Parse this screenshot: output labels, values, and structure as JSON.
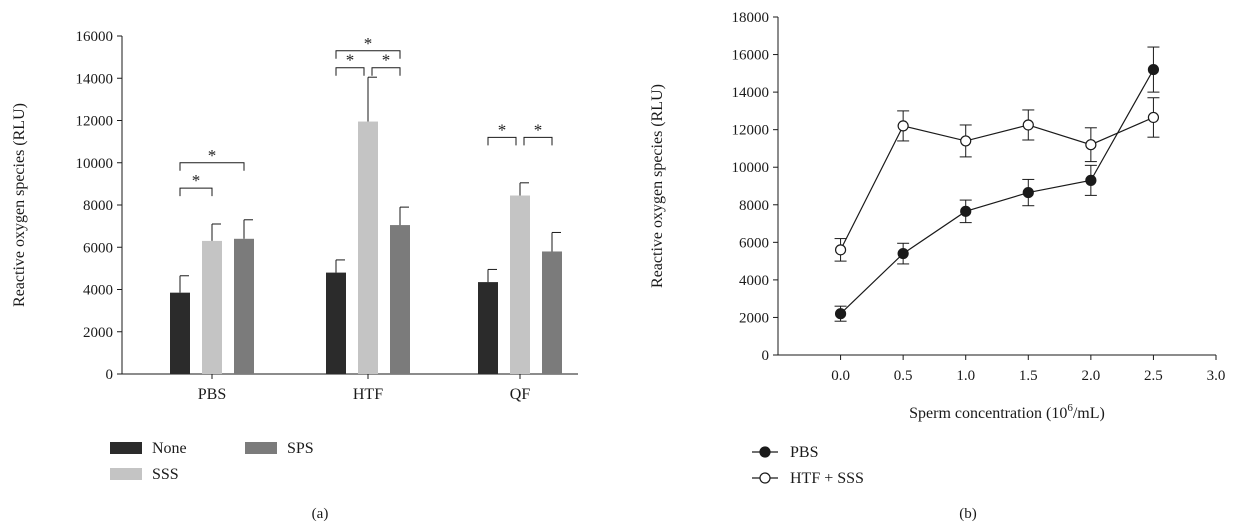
{
  "chart_data": [
    {
      "panel_label": "(a)",
      "type": "bar",
      "xlabel": "",
      "ylabel": "Reactive oxygen species (RLU)",
      "ylim": [
        0,
        16000
      ],
      "yticks": [
        0,
        2000,
        4000,
        6000,
        8000,
        10000,
        12000,
        14000,
        16000
      ],
      "categories": [
        "PBS",
        "HTF",
        "QF"
      ],
      "series": [
        {
          "name": "None",
          "color": "#2b2b2b",
          "values": [
            3850,
            4800,
            4350
          ],
          "errors": [
            800,
            600,
            600
          ]
        },
        {
          "name": "SSS",
          "color": "#c4c4c4",
          "values": [
            6300,
            11950,
            8450
          ],
          "errors": [
            800,
            2100,
            600
          ]
        },
        {
          "name": "SPS",
          "color": "#7b7b7b",
          "values": [
            6400,
            7050,
            5800
          ],
          "errors": [
            900,
            850,
            900
          ]
        }
      ],
      "significance": [
        {
          "category": "PBS",
          "from": "None",
          "to": "SSS",
          "y": 8800,
          "label": "*"
        },
        {
          "category": "PBS",
          "from": "None",
          "to": "SPS",
          "y": 10000,
          "label": "*"
        },
        {
          "category": "HTF",
          "from": "None",
          "to": "SSS",
          "y": 14500,
          "label": "*"
        },
        {
          "category": "HTF",
          "from": "SSS",
          "to": "SPS",
          "y": 14500,
          "label": "*"
        },
        {
          "category": "HTF",
          "from": "None",
          "to": "SPS",
          "y": 15300,
          "label": "*"
        },
        {
          "category": "QF",
          "from": "None",
          "to": "SSS",
          "y": 11200,
          "label": "*"
        },
        {
          "category": "QF",
          "from": "SSS",
          "to": "SPS",
          "y": 11200,
          "label": "*"
        }
      ],
      "legend_position": "bottom-left"
    },
    {
      "panel_label": "(b)",
      "type": "line",
      "xlabel_prefix": "Sperm concentration (10",
      "xlabel_sup": "6",
      "xlabel_suffix": "/mL)",
      "ylabel": "Reactive oxygen species (RLU)",
      "xlim": [
        -0.5,
        3.0
      ],
      "xticks": [
        "0.0",
        "0.5",
        "1.0",
        "1.5",
        "2.0",
        "2.5",
        "3.0"
      ],
      "ylim": [
        0,
        18000
      ],
      "yticks": [
        0,
        2000,
        4000,
        6000,
        8000,
        10000,
        12000,
        14000,
        16000,
        18000
      ],
      "series": [
        {
          "name": "PBS",
          "marker": "filled-circle",
          "x": [
            0.0,
            0.5,
            1.0,
            1.5,
            2.0,
            2.5
          ],
          "y": [
            2200,
            5400,
            7650,
            8650,
            9300,
            15200
          ],
          "errors": [
            400,
            550,
            600,
            700,
            800,
            1200
          ]
        },
        {
          "name": "HTF + SSS",
          "marker": "open-circle",
          "x": [
            0.0,
            0.5,
            1.0,
            1.5,
            2.0,
            2.5
          ],
          "y": [
            5600,
            12200,
            11400,
            12250,
            11200,
            12650
          ],
          "errors": [
            600,
            800,
            850,
            800,
            900,
            1050
          ]
        }
      ],
      "legend_position": "bottom-left"
    }
  ]
}
